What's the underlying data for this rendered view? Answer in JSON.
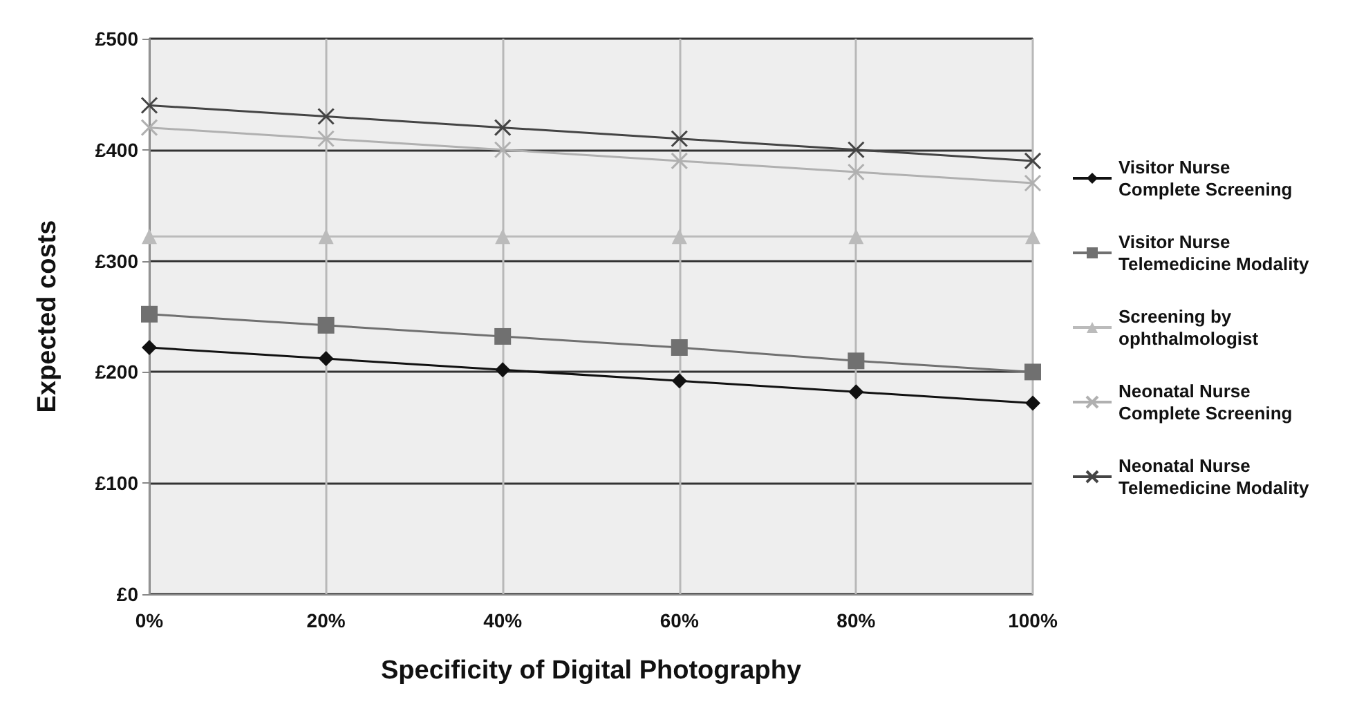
{
  "chart_data": {
    "type": "line",
    "xlabel": "Specificity of Digital Photography",
    "ylabel": "Expected costs",
    "categories": [
      "0%",
      "20%",
      "40%",
      "60%",
      "80%",
      "100%"
    ],
    "ylim": [
      0,
      500
    ],
    "yticks": [
      {
        "value": 0,
        "label": "£0"
      },
      {
        "value": 100,
        "label": "£100"
      },
      {
        "value": 200,
        "label": "£200"
      },
      {
        "value": 300,
        "label": "£300"
      },
      {
        "value": 400,
        "label": "£400"
      },
      {
        "value": 500,
        "label": "£500"
      }
    ],
    "grid": true,
    "legend": "right",
    "series": [
      {
        "name": "Visitor Nurse Complete Screening",
        "color": "#111111",
        "marker": "diamond",
        "values": [
          222,
          212,
          202,
          192,
          182,
          172
        ]
      },
      {
        "name": "Visitor Nurse Telemedicine Modality",
        "color": "#707070",
        "marker": "square",
        "values": [
          252,
          242,
          232,
          222,
          210,
          200
        ]
      },
      {
        "name": "Screening by ophthalmologist",
        "color": "#bbbbbb",
        "marker": "triangle",
        "values": [
          322,
          322,
          322,
          322,
          322,
          322
        ]
      },
      {
        "name": "Neonatal Nurse Complete Screening",
        "color": "#b0b0b0",
        "marker": "cross",
        "values": [
          420,
          410,
          400,
          390,
          380,
          370
        ]
      },
      {
        "name": "Neonatal Nurse Telemedicine Modality",
        "color": "#444444",
        "marker": "cross",
        "values": [
          440,
          430,
          420,
          410,
          400,
          390
        ]
      }
    ]
  }
}
